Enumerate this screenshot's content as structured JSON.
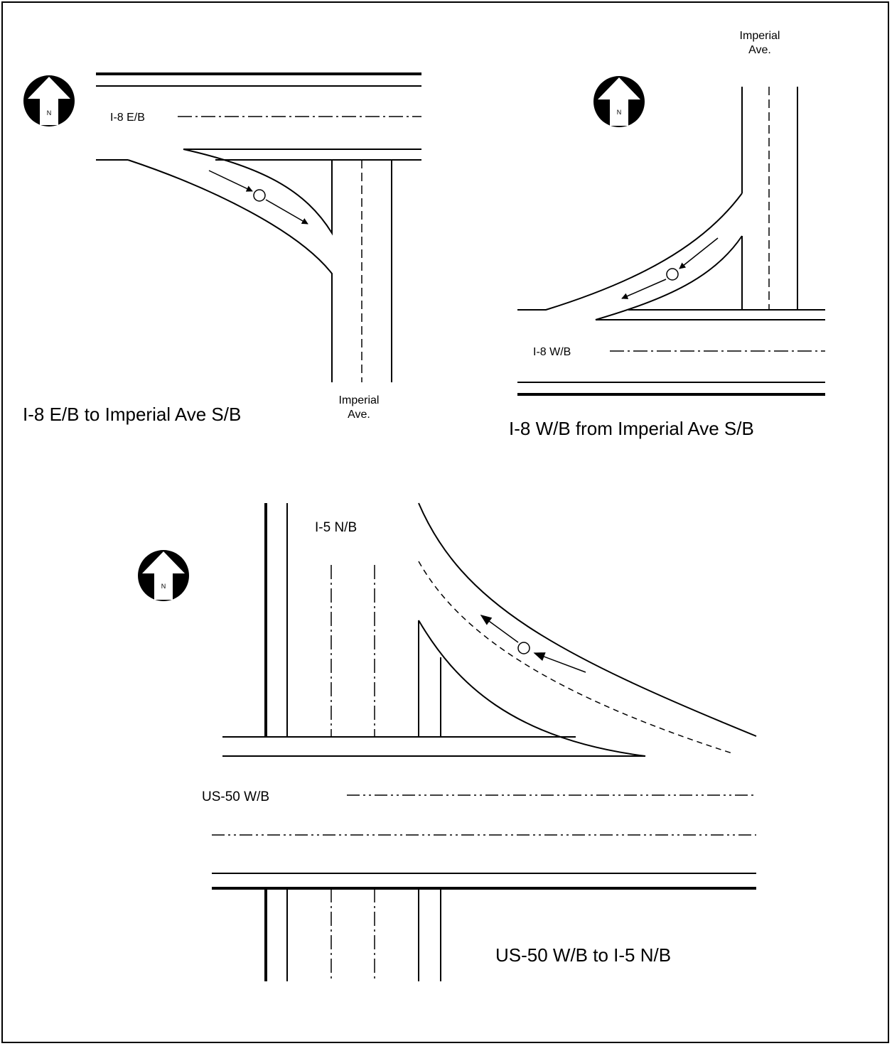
{
  "panels": {
    "top_left": {
      "title": "I-8 E/B to Imperial Ave S/B",
      "road_label_main": "I-8 E/B",
      "road_label_cross_1": "Imperial",
      "road_label_cross_2": "Ave.",
      "north_label": "N"
    },
    "top_right": {
      "title": "I-8 W/B from Imperial Ave S/B",
      "road_label_main": "I-8 W/B",
      "road_label_cross_1": "Imperial",
      "road_label_cross_2": "Ave.",
      "north_label": "N"
    },
    "bottom": {
      "title": "US-50 W/B to I-5 N/B",
      "road_label_main": "US-50 W/B",
      "road_label_cross": "I-5 N/B",
      "north_label": "N"
    }
  },
  "icons": {
    "north_arrow": "north-arrow-icon",
    "detector": "detector-circle-icon",
    "flow_arrow": "flow-arrow-icon"
  },
  "colors": {
    "stroke": "#000000",
    "background": "#ffffff"
  }
}
